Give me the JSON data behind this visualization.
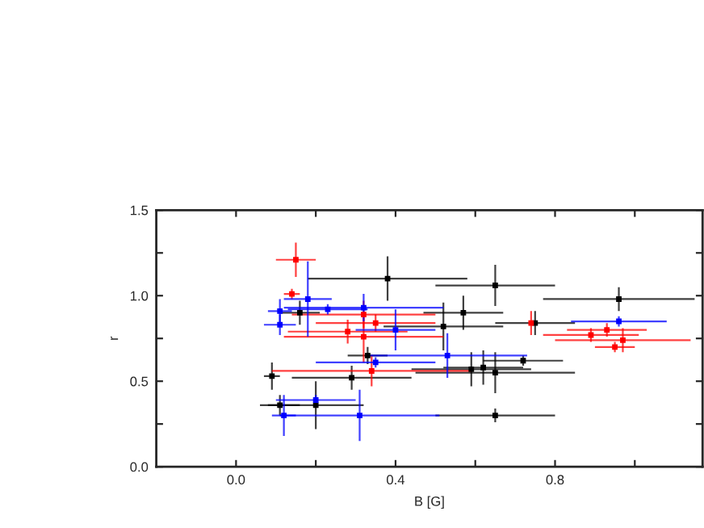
{
  "chart_data": {
    "type": "scatter",
    "xlabel": "B [G]",
    "ylabel": "r",
    "xlim": [
      -0.2,
      1.17
    ],
    "ylim": [
      0,
      1.5
    ],
    "xticks": [
      {
        "value": 0.0,
        "label": "0.0"
      },
      {
        "value": 0.2,
        "label": null
      },
      {
        "value": 0.4,
        "label": "0.4"
      },
      {
        "value": 0.6,
        "label": null
      },
      {
        "value": 0.8,
        "label": "0.8"
      },
      {
        "value": 1.0,
        "label": null
      }
    ],
    "yticks": [
      {
        "value": 0.0,
        "label": "0.0"
      },
      {
        "value": 0.25,
        "label": null
      },
      {
        "value": 0.5,
        "label": "0.5"
      },
      {
        "value": 0.75,
        "label": null
      },
      {
        "value": 1.0,
        "label": "1.0"
      },
      {
        "value": 1.25,
        "label": null
      },
      {
        "value": 1.5,
        "label": "1.5"
      }
    ],
    "grid": false,
    "legend": false,
    "marker": "square",
    "series": [
      {
        "color": "#000000",
        "x": [
          0.65,
          0.96,
          0.75,
          0.57,
          0.52,
          0.72,
          0.59,
          0.62,
          0.65,
          0.65,
          0.38,
          0.16,
          0.09,
          0.11,
          0.2,
          0.29,
          0.33
        ],
        "values": [
          1.06,
          0.98,
          0.84,
          0.9,
          0.82,
          0.62,
          0.57,
          0.58,
          0.55,
          0.3,
          1.1,
          0.9,
          0.53,
          0.36,
          0.36,
          0.52,
          0.65
        ],
        "xerrors": [
          0.15,
          0.19,
          0.1,
          0.1,
          0.15,
          0.1,
          0.15,
          0.1,
          0.2,
          0.15,
          0.2,
          0.05,
          0.02,
          0.05,
          0.12,
          0.15,
          0.05
        ],
        "errors": [
          0.12,
          0.07,
          0.07,
          0.1,
          0.14,
          0.03,
          0.1,
          0.1,
          0.12,
          0.04,
          0.13,
          0.07,
          0.08,
          0.06,
          0.14,
          0.07,
          0.05
        ]
      },
      {
        "color": "#ff0000",
        "x": [
          0.15,
          0.14,
          0.28,
          0.32,
          0.35,
          0.32,
          0.34,
          0.89,
          0.93,
          0.97,
          0.95,
          0.74
        ],
        "values": [
          1.21,
          1.01,
          0.79,
          0.89,
          0.84,
          0.76,
          0.56,
          0.77,
          0.8,
          0.74,
          0.7,
          0.84
        ],
        "xerrors": [
          0.05,
          0.02,
          0.15,
          0.18,
          0.15,
          0.2,
          0.25,
          0.12,
          0.1,
          0.17,
          0.05,
          null
        ],
        "errors": [
          0.1,
          0.03,
          0.07,
          0.08,
          0.05,
          0.15,
          0.09,
          0.04,
          0.04,
          0.07,
          0.03,
          0.07
        ]
      },
      {
        "color": "#0000ff",
        "x": [
          0.96,
          0.53,
          0.11,
          0.11,
          0.18,
          0.23,
          0.32,
          0.35,
          0.4,
          0.2,
          0.12,
          0.31
        ],
        "values": [
          0.85,
          0.65,
          0.91,
          0.83,
          0.98,
          0.92,
          0.93,
          0.61,
          0.8,
          0.39,
          0.3,
          0.3
        ],
        "xerrors": [
          0.12,
          0.2,
          0.03,
          0.04,
          0.06,
          0.1,
          0.2,
          0.15,
          0.1,
          0.1,
          0.03,
          0.2
        ],
        "errors": [
          0.03,
          0.13,
          0.07,
          0.06,
          0.22,
          0.03,
          0.08,
          0.03,
          0.12,
          0.03,
          0.12,
          0.15
        ]
      }
    ]
  }
}
